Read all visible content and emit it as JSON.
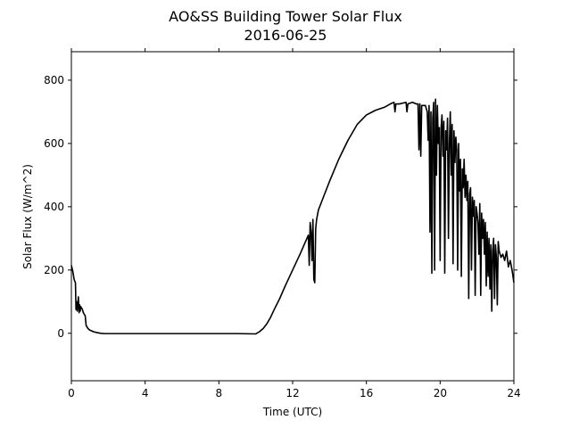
{
  "chart_data": {
    "type": "line",
    "title": "AO&SS Building Tower Solar Flux",
    "subtitle": "2016-06-25",
    "xlabel": "Time (UTC)",
    "ylabel": "Solar Flux (W/m^2)",
    "xlim": [
      0,
      24
    ],
    "ylim": [
      -150,
      890
    ],
    "xticks": [
      0,
      4,
      8,
      12,
      16,
      20,
      24
    ],
    "yticks": [
      0,
      200,
      400,
      600,
      800
    ],
    "xtick_labels": [
      "0",
      "4",
      "8",
      "12",
      "16",
      "20",
      "24"
    ],
    "ytick_labels": [
      "0",
      "200",
      "400",
      "600",
      "800"
    ],
    "grid": false,
    "line_color": "#000000",
    "series": [
      {
        "x": [
          0,
          0.08,
          0.15,
          0.22,
          0.25,
          0.28,
          0.32,
          0.38,
          0.42,
          0.45,
          0.48,
          0.5,
          0.55,
          0.6,
          0.65,
          0.7,
          0.75,
          0.8,
          0.85,
          0.9,
          1.0,
          1.2,
          1.4,
          1.6,
          1.8,
          2.0,
          2.2,
          2.5,
          3,
          4,
          5,
          6,
          7,
          8,
          9,
          10,
          10.2,
          10.4,
          10.6,
          10.8,
          11.0,
          11.3,
          11.6,
          12.0,
          12.4,
          12.7,
          12.85,
          12.9,
          12.95,
          13.0,
          13.05,
          13.1,
          13.15,
          13.2,
          13.25,
          13.3,
          13.4,
          13.6,
          14.0,
          14.5,
          15.0,
          15.5,
          16.0,
          16.5,
          17.0,
          17.3,
          17.5,
          17.55,
          17.6,
          17.8,
          18.0,
          18.15,
          18.2,
          18.25,
          18.5,
          18.7,
          18.8,
          18.85,
          18.9,
          18.95,
          19.0,
          19.2,
          19.3,
          19.35,
          19.4,
          19.45,
          19.5,
          19.55,
          19.6,
          19.65,
          19.7,
          19.75,
          19.8,
          19.85,
          19.9,
          19.95,
          20.0,
          20.05,
          20.1,
          20.15,
          20.2,
          20.25,
          20.3,
          20.35,
          20.4,
          20.45,
          20.5,
          20.55,
          20.6,
          20.65,
          20.7,
          20.75,
          20.8,
          20.85,
          20.9,
          20.95,
          21.0,
          21.05,
          21.1,
          21.15,
          21.2,
          21.25,
          21.3,
          21.35,
          21.4,
          21.45,
          21.5,
          21.55,
          21.6,
          21.65,
          21.7,
          21.75,
          21.8,
          21.85,
          21.9,
          21.95,
          22.0,
          22.05,
          22.1,
          22.15,
          22.2,
          22.25,
          22.3,
          22.35,
          22.4,
          22.45,
          22.5,
          22.55,
          22.6,
          22.65,
          22.7,
          22.75,
          22.8,
          22.85,
          22.9,
          22.95,
          23.0,
          23.05,
          23.1,
          23.15,
          23.2,
          23.3,
          23.4,
          23.5,
          23.6,
          23.7,
          23.8,
          23.9,
          24.0
        ],
        "y": [
          215,
          195,
          170,
          160,
          75,
          100,
          70,
          115,
          65,
          90,
          70,
          85,
          80,
          75,
          65,
          60,
          55,
          25,
          20,
          15,
          10,
          5,
          2,
          0,
          -1,
          -1,
          -1,
          -1,
          -1,
          -1,
          -1,
          -1,
          -1,
          -1,
          -1,
          -2,
          5,
          15,
          30,
          50,
          75,
          110,
          150,
          200,
          250,
          290,
          310,
          215,
          350,
          320,
          230,
          360,
          170,
          160,
          330,
          360,
          390,
          420,
          480,
          550,
          610,
          660,
          690,
          705,
          715,
          725,
          730,
          700,
          725,
          725,
          728,
          730,
          700,
          725,
          730,
          725,
          725,
          580,
          725,
          560,
          720,
          720,
          700,
          610,
          720,
          320,
          700,
          190,
          680,
          730,
          200,
          740,
          500,
          720,
          600,
          650,
          230,
          650,
          690,
          560,
          670,
          190,
          640,
          580,
          680,
          300,
          600,
          700,
          500,
          660,
          220,
          640,
          540,
          620,
          580,
          200,
          600,
          450,
          550,
          180,
          520,
          460,
          550,
          430,
          500,
          420,
          480,
          110,
          440,
          460,
          200,
          430,
          370,
          420,
          120,
          400,
          380,
          350,
          250,
          410,
          120,
          380,
          300,
          360,
          250,
          350,
          150,
          320,
          180,
          300,
          140,
          280,
          70,
          260,
          300,
          110,
          280,
          240,
          90,
          290,
          260,
          240,
          250,
          230,
          260,
          210,
          230,
          200,
          160
        ]
      }
    ]
  }
}
